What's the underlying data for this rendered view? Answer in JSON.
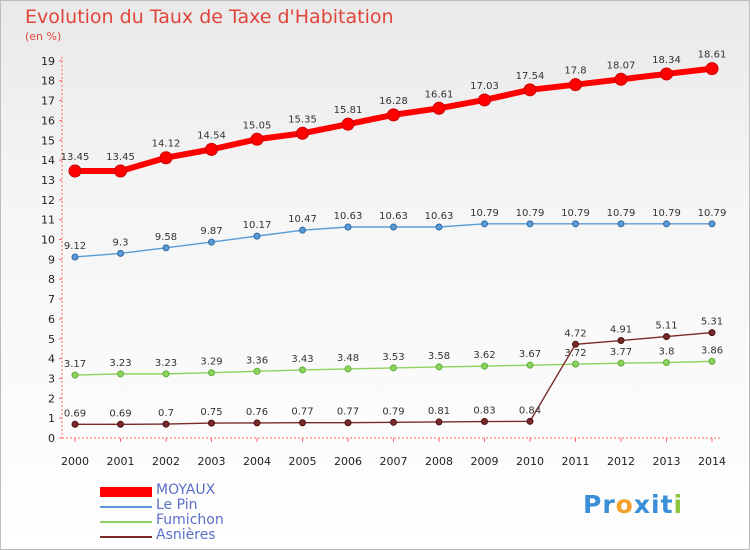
{
  "chart_data": {
    "type": "line",
    "title": "Evolution du Taux de Taxe d'Habitation",
    "subtitle": "(en %)",
    "x": [
      "2000",
      "2001",
      "2002",
      "2003",
      "2004",
      "2005",
      "2006",
      "2007",
      "2008",
      "2009",
      "2010",
      "2011",
      "2012",
      "2013",
      "2014"
    ],
    "ylim": [
      0,
      19
    ],
    "yticks": [
      0,
      1,
      2,
      3,
      4,
      5,
      6,
      7,
      8,
      9,
      10,
      11,
      12,
      13,
      14,
      15,
      16,
      17,
      18,
      19
    ],
    "grid": false,
    "legend_position": "bottom-left",
    "series": [
      {
        "name": "MOYAUX",
        "color": "#ff0000",
        "values": [
          13.45,
          13.45,
          14.12,
          14.54,
          15.05,
          15.35,
          15.81,
          16.28,
          16.61,
          17.03,
          17.54,
          17.8,
          18.07,
          18.34,
          18.61
        ],
        "labels": [
          "13.45",
          "13.45",
          "14.12",
          "14.54",
          "15.05",
          "15.35",
          "15.81",
          "16.28",
          "16.61",
          "17.03",
          "17.54",
          "17.8",
          "18.07",
          "18.34",
          "18.61"
        ]
      },
      {
        "name": "Le Pin",
        "color": "#5b9bd5",
        "values": [
          9.12,
          9.3,
          9.58,
          9.87,
          10.17,
          10.47,
          10.63,
          10.63,
          10.63,
          10.79,
          10.79,
          10.79,
          10.79,
          10.79,
          10.79
        ],
        "labels": [
          "9.12",
          "9.3",
          "9.58",
          "9.87",
          "10.17",
          "10.47",
          "10.63",
          "10.63",
          "10.63",
          "10.79",
          "10.79",
          "10.79",
          "10.79",
          "10.79",
          "10.79"
        ]
      },
      {
        "name": "Fumichon",
        "color": "#8fd35f",
        "values": [
          3.17,
          3.23,
          3.23,
          3.29,
          3.36,
          3.43,
          3.48,
          3.53,
          3.58,
          3.62,
          3.67,
          3.72,
          3.77,
          3.8,
          3.86
        ],
        "labels": [
          "3.17",
          "3.23",
          "3.23",
          "3.29",
          "3.36",
          "3.43",
          "3.48",
          "3.53",
          "3.58",
          "3.62",
          "3.67",
          "3.72",
          "3.77",
          "3.8",
          "3.86"
        ]
      },
      {
        "name": "Asnières",
        "color": "#7a2a2a",
        "values": [
          0.69,
          0.69,
          0.7,
          0.75,
          0.76,
          0.77,
          0.77,
          0.79,
          0.81,
          0.83,
          0.84,
          4.72,
          4.91,
          5.11,
          5.31
        ],
        "labels": [
          "0.69",
          "0.69",
          "0.7",
          "0.75",
          "0.76",
          "0.77",
          "0.77",
          "0.79",
          "0.81",
          "0.83",
          "0.84",
          "4.72",
          "4.91",
          "5.11",
          "5.31"
        ]
      }
    ]
  },
  "logo": {
    "text": "Proxiti",
    "letters": [
      "P",
      "r",
      "o",
      "x",
      "i",
      "t",
      "i"
    ],
    "colors": [
      "#3b8ed8",
      "#3b8ed8",
      "#f2a12b",
      "#3b8ed8",
      "#3b8ed8",
      "#3b8ed8",
      "#8cc63f"
    ]
  }
}
